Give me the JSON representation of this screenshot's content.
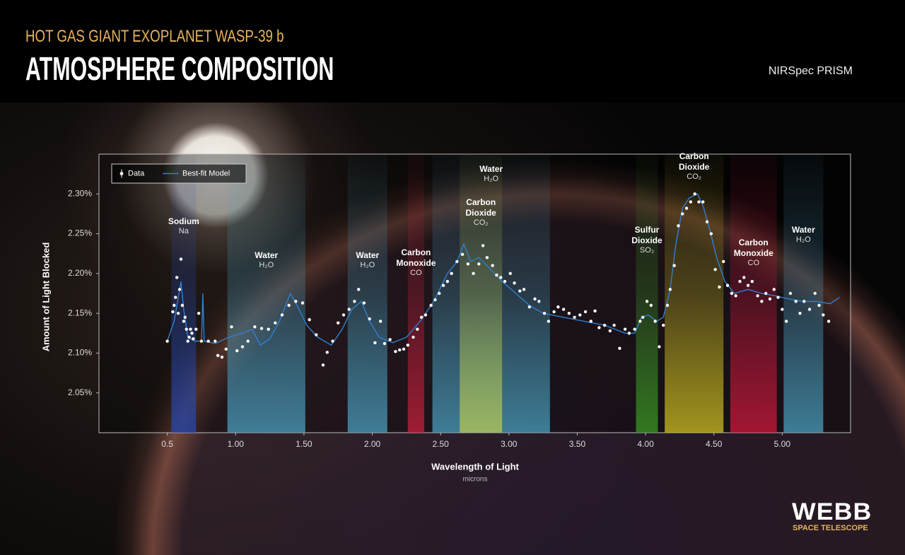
{
  "header": {
    "subtitle": "HOT GAS GIANT EXOPLANET WASP-39 b",
    "title": "ATMOSPHERE COMPOSITION",
    "instrument": "NIRSpec PRISM"
  },
  "logo": {
    "name": "WEBB",
    "tagline": "SPACE TELESCOPE"
  },
  "chart_data": {
    "type": "scatter",
    "x_label": "Wavelength of Light",
    "x_unit": "microns",
    "y_label": "Amount of Light Blocked",
    "xlim": [
      0,
      5.5
    ],
    "ylim": [
      2.0,
      2.35
    ],
    "xticks": [
      0.5,
      {
        "value": 1,
        "label": "1.00"
      },
      {
        "value": 1.5,
        "label": "1.50"
      },
      {
        "value": 2,
        "label": "2.00"
      },
      {
        "value": 2.5,
        "label": "2.50"
      },
      {
        "value": 3,
        "label": "3.00"
      },
      {
        "value": 3.5,
        "label": "3.50"
      },
      {
        "value": 4,
        "label": "4.00"
      },
      {
        "value": 4.5,
        "label": "4.50"
      },
      {
        "value": 5,
        "label": "5.00"
      }
    ],
    "yticks": [
      {
        "value": 2.05,
        "label": "2.05%"
      },
      {
        "value": 2.1,
        "label": "2.10%"
      },
      {
        "value": 2.15,
        "label": "2.15%"
      },
      {
        "value": 2.2,
        "label": "2.20%"
      },
      {
        "value": 2.25,
        "label": "2.25%"
      },
      {
        "value": 2.3,
        "label": "2.30%"
      }
    ],
    "legend": "upper left",
    "series": [
      {
        "name": "Data",
        "kind": "points",
        "color": "#ffffff",
        "x": [
          0.5,
          0.54,
          0.55,
          0.56,
          0.57,
          0.58,
          0.59,
          0.6,
          0.61,
          0.62,
          0.63,
          0.64,
          0.65,
          0.66,
          0.67,
          0.68,
          0.69,
          0.71,
          0.73,
          0.75,
          0.8,
          0.85,
          0.87,
          0.9,
          0.93,
          0.97,
          1.01,
          1.05,
          1.09,
          1.14,
          1.19,
          1.24,
          1.29,
          1.34,
          1.39,
          1.44,
          1.49,
          1.54,
          1.59,
          1.64,
          1.67,
          1.71,
          1.75,
          1.79,
          1.83,
          1.87,
          1.9,
          1.94,
          1.98,
          2.02,
          2.06,
          2.09,
          2.13,
          2.17,
          2.2,
          2.23,
          2.26,
          2.3,
          2.33,
          2.36,
          2.39,
          2.43,
          2.46,
          2.49,
          2.52,
          2.55,
          2.58,
          2.62,
          2.66,
          2.7,
          2.74,
          2.78,
          2.81,
          2.84,
          2.88,
          2.91,
          2.94,
          2.97,
          3.01,
          3.04,
          3.08,
          3.11,
          3.15,
          3.19,
          3.22,
          3.26,
          3.29,
          3.33,
          3.36,
          3.4,
          3.44,
          3.48,
          3.52,
          3.56,
          3.6,
          3.63,
          3.66,
          3.7,
          3.74,
          3.77,
          3.81,
          3.85,
          3.88,
          3.92,
          3.96,
          3.98,
          4.01,
          4.04,
          4.07,
          4.1,
          4.13,
          4.16,
          4.18,
          4.21,
          4.24,
          4.27,
          4.3,
          4.33,
          4.36,
          4.39,
          4.42,
          4.45,
          4.48,
          4.51,
          4.54,
          4.57,
          4.6,
          4.63,
          4.66,
          4.69,
          4.72,
          4.75,
          4.78,
          4.82,
          4.85,
          4.88,
          4.91,
          4.94,
          4.97,
          5.0,
          5.03,
          5.06,
          5.1,
          5.13,
          5.16,
          5.2,
          5.24,
          5.27,
          5.3,
          5.34
        ],
        "values": [
          2.115,
          2.152,
          2.16,
          2.17,
          2.195,
          2.15,
          2.18,
          2.218,
          2.16,
          2.14,
          2.145,
          2.13,
          2.115,
          2.12,
          2.13,
          2.125,
          2.118,
          2.13,
          2.15,
          2.115,
          2.115,
          2.115,
          2.097,
          2.095,
          2.105,
          2.133,
          2.103,
          2.108,
          2.115,
          2.133,
          2.131,
          2.13,
          2.138,
          2.148,
          2.16,
          2.165,
          2.163,
          2.142,
          2.123,
          2.085,
          2.101,
          2.115,
          2.138,
          2.148,
          2.155,
          2.165,
          2.18,
          2.163,
          2.143,
          2.113,
          2.14,
          2.112,
          2.117,
          2.102,
          2.104,
          2.105,
          2.11,
          2.12,
          2.13,
          2.145,
          2.148,
          2.16,
          2.167,
          2.175,
          2.185,
          2.19,
          2.2,
          2.215,
          2.224,
          2.212,
          2.2,
          2.212,
          2.235,
          2.22,
          2.21,
          2.198,
          2.195,
          2.19,
          2.2,
          2.188,
          2.178,
          2.18,
          2.158,
          2.168,
          2.165,
          2.15,
          2.14,
          2.152,
          2.158,
          2.155,
          2.15,
          2.145,
          2.148,
          2.152,
          2.14,
          2.153,
          2.132,
          2.135,
          2.128,
          2.135,
          2.106,
          2.13,
          2.125,
          2.13,
          2.14,
          2.145,
          2.165,
          2.16,
          2.14,
          2.108,
          2.135,
          2.16,
          2.18,
          2.21,
          2.26,
          2.275,
          2.282,
          2.29,
          2.3,
          2.29,
          2.29,
          2.265,
          2.25,
          2.205,
          2.183,
          2.215,
          2.185,
          2.175,
          2.172,
          2.19,
          2.195,
          2.185,
          2.19,
          2.172,
          2.165,
          2.175,
          2.168,
          2.18,
          2.17,
          2.155,
          2.14,
          2.175,
          2.165,
          2.15,
          2.165,
          2.155,
          2.175,
          2.16,
          2.148,
          2.14
        ]
      },
      {
        "name": "Best-fit Model",
        "kind": "line",
        "color": "#2f80d0",
        "x": [
          0.5,
          0.55,
          0.58,
          0.6,
          0.62,
          0.65,
          0.7,
          0.75,
          0.76,
          0.77,
          0.85,
          0.95,
          1.05,
          1.12,
          1.18,
          1.25,
          1.32,
          1.4,
          1.45,
          1.52,
          1.6,
          1.7,
          1.78,
          1.85,
          1.92,
          1.98,
          2.05,
          2.15,
          2.25,
          2.35,
          2.45,
          2.55,
          2.62,
          2.67,
          2.72,
          2.78,
          2.85,
          2.95,
          3.05,
          3.15,
          3.25,
          3.4,
          3.55,
          3.7,
          3.85,
          3.92,
          3.97,
          4.02,
          4.08,
          4.13,
          4.18,
          4.22,
          4.27,
          4.32,
          4.38,
          4.42,
          4.47,
          4.52,
          4.58,
          4.65,
          4.75,
          4.85,
          4.95,
          5.05,
          5.15,
          5.25,
          5.35,
          5.42
        ],
        "values": [
          2.115,
          2.14,
          2.17,
          2.19,
          2.155,
          2.12,
          2.115,
          2.115,
          2.175,
          2.115,
          2.112,
          2.12,
          2.125,
          2.13,
          2.11,
          2.118,
          2.14,
          2.175,
          2.16,
          2.135,
          2.12,
          2.11,
          2.13,
          2.155,
          2.165,
          2.14,
          2.12,
          2.113,
          2.12,
          2.14,
          2.165,
          2.2,
          2.215,
          2.237,
          2.215,
          2.22,
          2.208,
          2.19,
          2.175,
          2.16,
          2.15,
          2.145,
          2.14,
          2.135,
          2.125,
          2.125,
          2.145,
          2.148,
          2.14,
          2.145,
          2.18,
          2.235,
          2.282,
          2.295,
          2.3,
          2.285,
          2.255,
          2.22,
          2.19,
          2.175,
          2.18,
          2.175,
          2.172,
          2.168,
          2.165,
          2.165,
          2.162,
          2.17
        ]
      }
    ],
    "bands": [
      {
        "name": "Sodium",
        "formula": "Na",
        "range": [
          0.53,
          0.71
        ],
        "color": "#2848b0"
      },
      {
        "name": "Water",
        "formula": "H₂O",
        "range": [
          0.94,
          1.51
        ],
        "color": "#4aa0c0"
      },
      {
        "name": "Water",
        "formula": "H₂O",
        "range": [
          1.82,
          2.11
        ],
        "color": "#4aa0c0"
      },
      {
        "name": "Carbon Monoxide",
        "formula": "CO",
        "range": [
          2.26,
          2.38
        ],
        "color": "#c8203c"
      },
      {
        "name": "Water",
        "formula": "H₂O",
        "range": [
          2.44,
          3.3
        ],
        "color": "#4aa0c0"
      },
      {
        "name": "Carbon Dioxide",
        "formula": "CO₂",
        "range": [
          2.64,
          2.95
        ],
        "color": "#b8c850"
      },
      {
        "name": "Sulfur Dioxide",
        "formula": "SO₂",
        "range": [
          3.93,
          4.09
        ],
        "color": "#3c9a24"
      },
      {
        "name": "Carbon Dioxide",
        "formula": "CO₂",
        "range": [
          4.14,
          4.57
        ],
        "color": "#d0c020"
      },
      {
        "name": "Carbon Monoxide",
        "formula": "CO",
        "range": [
          4.62,
          4.96
        ],
        "color": "#d0183c"
      },
      {
        "name": "Water",
        "formula": "H₂O",
        "range": [
          5.01,
          5.3
        ],
        "color": "#4aa0c0"
      }
    ]
  }
}
